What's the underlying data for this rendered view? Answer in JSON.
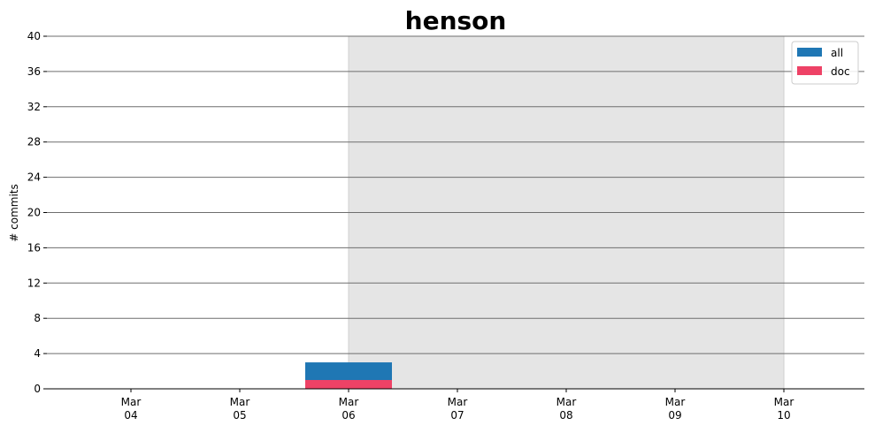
{
  "chart_data": {
    "type": "bar",
    "title": "henson",
    "ylabel": "# commits",
    "xlabel": "",
    "ylim": [
      0,
      40
    ],
    "yticks": [
      0,
      4,
      8,
      12,
      16,
      20,
      24,
      28,
      32,
      36,
      40
    ],
    "categories": [
      {
        "month": "Mar",
        "day": "04"
      },
      {
        "month": "Mar",
        "day": "05"
      },
      {
        "month": "Mar",
        "day": "06"
      },
      {
        "month": "Mar",
        "day": "07"
      },
      {
        "month": "Mar",
        "day": "08"
      },
      {
        "month": "Mar",
        "day": "09"
      },
      {
        "month": "Mar",
        "day": "10"
      }
    ],
    "series": [
      {
        "name": "all",
        "color": "#1f77b4",
        "values": [
          0,
          0,
          3,
          0,
          0,
          0,
          0
        ]
      },
      {
        "name": "doc",
        "color": "#ee4266",
        "values": [
          0,
          0,
          1,
          0,
          0,
          0,
          0
        ]
      }
    ],
    "highlight_span": {
      "from_index": 2,
      "to_index": 6,
      "color": "#e5e5e5"
    },
    "grid": true,
    "legend_position": "top-right"
  }
}
